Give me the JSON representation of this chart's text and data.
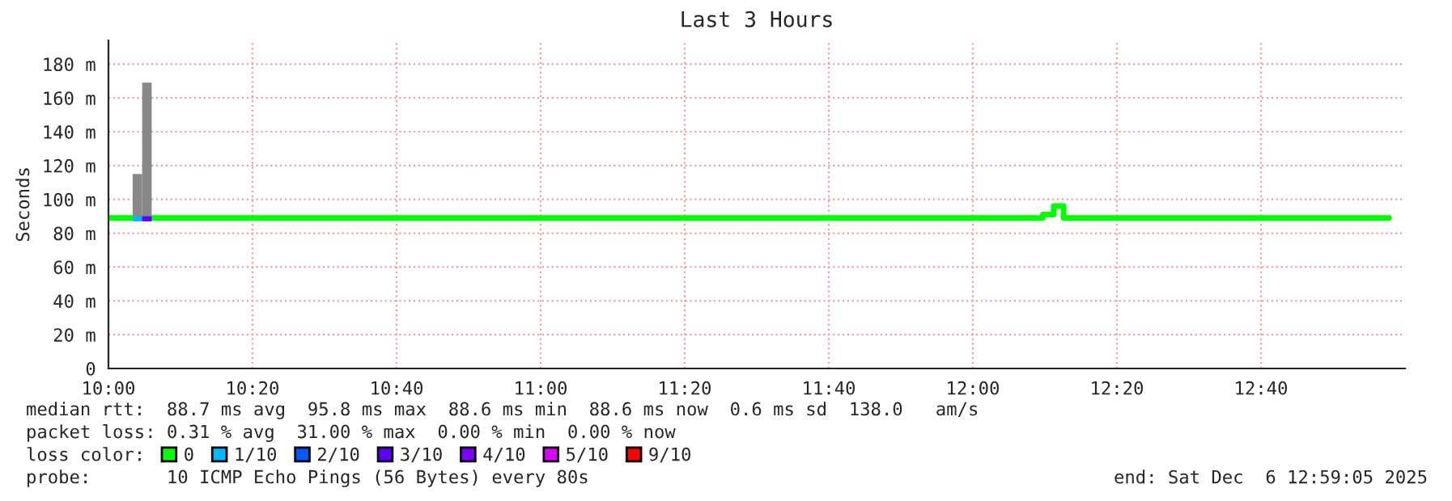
{
  "chart_data": {
    "type": "step",
    "title": "Last 3 Hours",
    "ylabel": "Seconds",
    "xlim": [
      10,
      13
    ],
    "ylim": [
      0,
      194
    ],
    "xticks": [
      {
        "value": 10,
        "label": "10:00"
      },
      {
        "value": 10.3333,
        "label": "10:20"
      },
      {
        "value": 10.6667,
        "label": "10:40"
      },
      {
        "value": 11,
        "label": "11:00"
      },
      {
        "value": 11.3333,
        "label": "11:20"
      },
      {
        "value": 11.6667,
        "label": "11:40"
      },
      {
        "value": 12,
        "label": "12:00"
      },
      {
        "value": 12.3333,
        "label": "12:20"
      },
      {
        "value": 12.6667,
        "label": "12:40"
      }
    ],
    "yticks": [
      0,
      {
        "value": 20,
        "label": "20 m"
      },
      {
        "value": 40,
        "label": "40 m"
      },
      {
        "value": 60,
        "label": "60 m"
      },
      {
        "value": 80,
        "label": "80 m"
      },
      {
        "value": 100,
        "label": "100 m"
      },
      {
        "value": 120,
        "label": "120 m"
      },
      {
        "value": 140,
        "label": "140 m"
      },
      {
        "value": 160,
        "label": "160 m"
      },
      {
        "value": 180,
        "label": "180 m"
      }
    ],
    "grid": true,
    "legend": "bottom",
    "legend_title": "loss color:",
    "series": [
      {
        "type": "bar",
        "color": "#888888",
        "x": [
          10.067,
          10.089
        ],
        "base": [
          88,
          88
        ],
        "values": [
          27,
          81
        ]
      },
      {
        "name": "0",
        "color": "#00ff00",
        "x": [
          10.0,
          12.162,
          12.187,
          12.21,
          12.963
        ],
        "values": [
          89,
          91,
          96,
          89,
          89
        ]
      },
      {
        "type": "bar",
        "name": "1/10",
        "color": "#00b8ff",
        "x": [
          10.067
        ],
        "base": [
          87
        ],
        "values": [
          3
        ]
      },
      {
        "type": "bar",
        "name": "2/10",
        "color": "#0059ff"
      },
      {
        "type": "bar",
        "name": "3/10",
        "color": "#5e00ff",
        "x": [
          10.089
        ],
        "base": [
          87
        ],
        "values": [
          3
        ]
      },
      {
        "type": "bar",
        "name": "4/10",
        "color": "#7e00ff"
      },
      {
        "type": "bar",
        "name": "5/10",
        "color": "#dd00ff"
      },
      {
        "type": "bar",
        "name": "9/10",
        "color": "#ff0000"
      }
    ],
    "annotations": [
      "median rtt:  88.7 ms avg  95.8 ms max  88.6 ms min  88.6 ms now  0.6 ms sd  138.0   am/s",
      "packet loss: 0.31 % avg  31.00 % max  0.00 % min  0.00 % now",
      "probe:       10 ICMP Echo Pings (56 Bytes) every 80s",
      "end: Sat Dec  6 12:59:05 2025"
    ]
  }
}
